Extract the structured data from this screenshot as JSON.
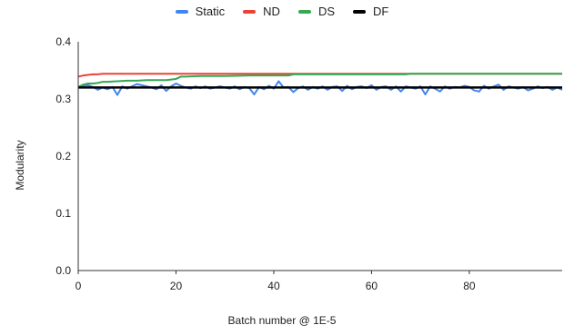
{
  "chart_data": {
    "type": "line",
    "title": "",
    "xlabel": "Batch number @ 1E-5",
    "ylabel": "Modularity",
    "xlim": [
      0,
      99
    ],
    "ylim": [
      0,
      0.4
    ],
    "x_ticks": [
      0,
      20,
      40,
      60,
      80
    ],
    "y_ticks": [
      "0.0",
      "0.1",
      "0.2",
      "0.3",
      "0.4"
    ],
    "grid": false,
    "legend_position": "top",
    "series": [
      {
        "name": "Static",
        "color": "#4285F4",
        "x": [
          0,
          1,
          2,
          3,
          4,
          5,
          6,
          7,
          8,
          9,
          10,
          11,
          12,
          13,
          14,
          15,
          16,
          17,
          18,
          19,
          20,
          21,
          22,
          23,
          24,
          25,
          26,
          27,
          28,
          29,
          30,
          31,
          32,
          33,
          34,
          35,
          36,
          37,
          38,
          39,
          40,
          41,
          42,
          43,
          44,
          45,
          46,
          47,
          48,
          49,
          50,
          51,
          52,
          53,
          54,
          55,
          56,
          57,
          58,
          59,
          60,
          61,
          62,
          63,
          64,
          65,
          66,
          67,
          68,
          69,
          70,
          71,
          72,
          73,
          74,
          75,
          76,
          77,
          78,
          79,
          80,
          81,
          82,
          83,
          84,
          85,
          86,
          87,
          88,
          89,
          90,
          91,
          92,
          93,
          94,
          95,
          96,
          97,
          98,
          99
        ],
        "y": [
          0.321,
          0.322,
          0.324,
          0.321,
          0.316,
          0.32,
          0.317,
          0.321,
          0.307,
          0.322,
          0.318,
          0.322,
          0.326,
          0.324,
          0.322,
          0.32,
          0.317,
          0.324,
          0.314,
          0.322,
          0.327,
          0.323,
          0.32,
          0.318,
          0.322,
          0.319,
          0.322,
          0.318,
          0.32,
          0.322,
          0.32,
          0.318,
          0.322,
          0.317,
          0.321,
          0.319,
          0.308,
          0.321,
          0.317,
          0.323,
          0.318,
          0.331,
          0.32,
          0.321,
          0.312,
          0.319,
          0.322,
          0.316,
          0.321,
          0.318,
          0.322,
          0.316,
          0.321,
          0.322,
          0.314,
          0.323,
          0.317,
          0.321,
          0.322,
          0.319,
          0.324,
          0.316,
          0.321,
          0.322,
          0.316,
          0.322,
          0.313,
          0.322,
          0.32,
          0.318,
          0.322,
          0.308,
          0.322,
          0.318,
          0.313,
          0.322,
          0.318,
          0.321,
          0.32,
          0.323,
          0.321,
          0.315,
          0.313,
          0.323,
          0.318,
          0.322,
          0.325,
          0.316,
          0.322,
          0.32,
          0.318,
          0.321,
          0.315,
          0.318,
          0.322,
          0.319,
          0.321,
          0.316,
          0.32,
          0.316
        ]
      },
      {
        "name": "ND",
        "color": "#EA4335",
        "x": [
          0,
          1,
          2,
          3,
          4,
          5,
          6,
          8,
          10,
          15,
          20,
          30,
          40,
          50,
          60,
          70,
          80,
          90,
          99
        ],
        "y": [
          0.339,
          0.341,
          0.342,
          0.343,
          0.343,
          0.344,
          0.344,
          0.344,
          0.344,
          0.344,
          0.344,
          0.344,
          0.344,
          0.344,
          0.344,
          0.344,
          0.344,
          0.344,
          0.344
        ]
      },
      {
        "name": "DS",
        "color": "#34A853",
        "x": [
          0,
          1,
          2,
          3,
          4,
          5,
          6,
          8,
          10,
          12,
          14,
          16,
          18,
          19,
          20,
          21,
          22,
          25,
          30,
          35,
          40,
          43,
          44,
          50,
          60,
          67,
          68,
          75,
          80,
          90,
          99
        ],
        "y": [
          0.321,
          0.325,
          0.327,
          0.327,
          0.328,
          0.33,
          0.33,
          0.331,
          0.332,
          0.332,
          0.333,
          0.333,
          0.333,
          0.334,
          0.335,
          0.339,
          0.339,
          0.34,
          0.34,
          0.341,
          0.341,
          0.341,
          0.343,
          0.343,
          0.343,
          0.343,
          0.344,
          0.344,
          0.344,
          0.344,
          0.344
        ]
      },
      {
        "name": "DF",
        "color": "#000000",
        "x": [
          0,
          10,
          20,
          30,
          40,
          50,
          60,
          70,
          80,
          90,
          99
        ],
        "y": [
          0.32,
          0.32,
          0.32,
          0.32,
          0.32,
          0.32,
          0.32,
          0.32,
          0.32,
          0.32,
          0.32
        ]
      }
    ]
  }
}
